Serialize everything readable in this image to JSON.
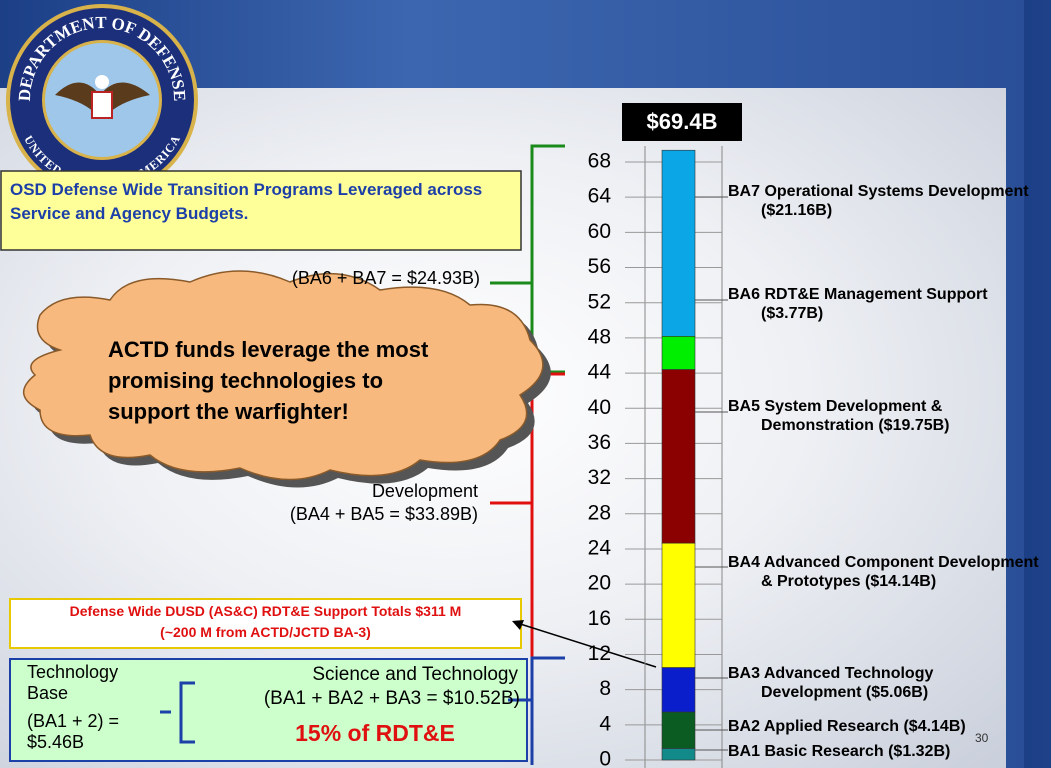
{
  "logo": {
    "top_text": "DEPARTMENT OF DEFENSE",
    "bottom_text": "UNITED STATES OF AMERICA"
  },
  "title_box": "OSD Defense Wide Transition Programs Leveraged across Service and Agency Budgets.",
  "callout_cloud": "ACTD funds leverage the most promising technologies to support the warfighter!",
  "note_box": {
    "line1": "Defense Wide DUSD (AS&C) RDT&E Support Totals $311 M",
    "line2": "(~200 M  from ACTD/JCTD BA-3)"
  },
  "page_number": "30",
  "chart_data": {
    "type": "stacked_bar",
    "total_label": "$69.4B",
    "ylim": [
      0,
      70
    ],
    "yticks": [
      0,
      4,
      8,
      12,
      16,
      20,
      24,
      28,
      32,
      36,
      40,
      44,
      48,
      52,
      56,
      60,
      64,
      68
    ],
    "series": [
      {
        "name": "BA1 Basic Research ($1.32B)",
        "color": "#138a8a",
        "values": [
          1.32
        ]
      },
      {
        "name": "BA2 Applied Research ($4.14B)",
        "color": "#0a5c22",
        "values": [
          4.14
        ]
      },
      {
        "name": "BA3 Advanced Technology Development ($5.06B)",
        "color": "#0a1ecc",
        "values": [
          5.06
        ]
      },
      {
        "name": "BA4 Advanced Component Development & Prototypes ($14.14B)",
        "color": "#ffff00",
        "values": [
          14.14
        ]
      },
      {
        "name": "BA5 System Development & Demonstration ($19.75B)",
        "color": "#8b0000",
        "values": [
          19.75
        ]
      },
      {
        "name": "BA6 RDT&E Management Support ($3.77B)",
        "color": "#00ee00",
        "values": [
          3.77
        ]
      },
      {
        "name": "BA7 Operational Systems Development ($21.16B)",
        "color": "#0ba6e6",
        "values": [
          21.16
        ]
      }
    ],
    "groups": {
      "ba6_ba7": {
        "label": "(BA6 + BA7 = $24.93B)"
      },
      "ba4_ba5": {
        "name": "Development",
        "label": "(BA4 + BA5 = $33.89B)"
      },
      "science_technology": {
        "name": "Science and Technology",
        "label": "(BA1 + BA2 + BA3 = $10.52B)",
        "share": "15% of RDT&E"
      },
      "technology_base": {
        "name": "Technology Base",
        "label": "(BA1 + 2) = $5.46B"
      }
    }
  }
}
